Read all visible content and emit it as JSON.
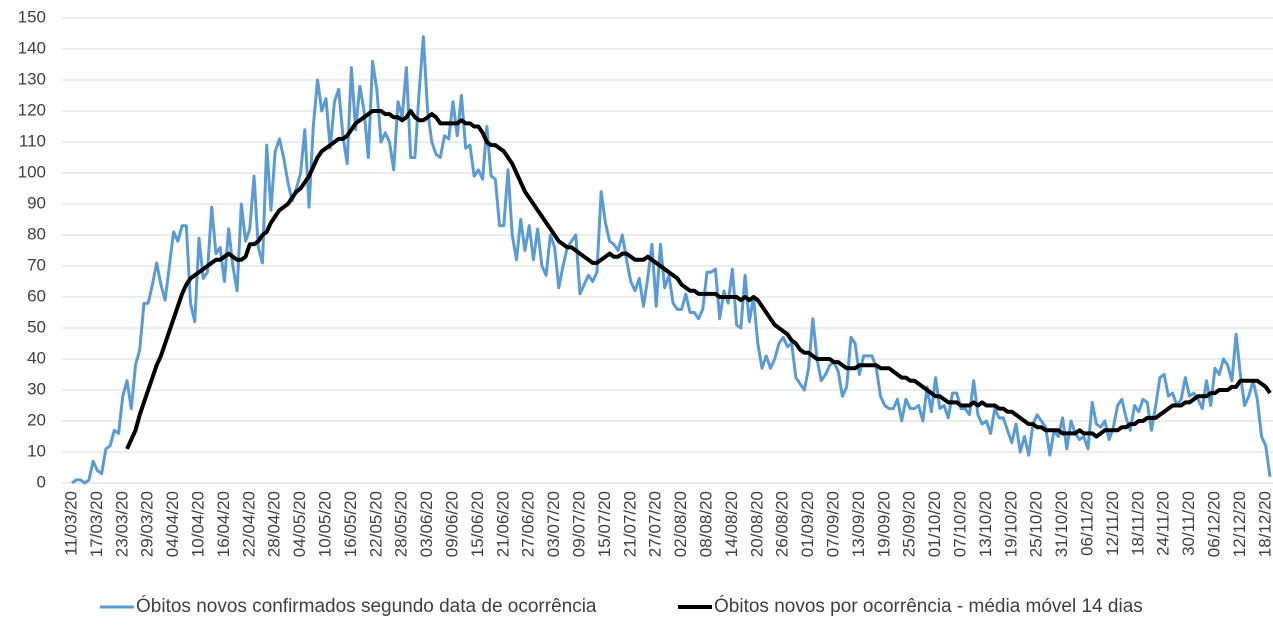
{
  "chart_data": {
    "type": "line",
    "categories": [
      "11/03/20",
      null,
      null,
      null,
      null,
      null,
      "17/03/20",
      null,
      null,
      null,
      null,
      null,
      "23/03/20",
      null,
      null,
      null,
      null,
      null,
      "29/03/20",
      null,
      null,
      null,
      null,
      null,
      "04/04/20",
      null,
      null,
      null,
      null,
      null,
      "10/04/20",
      null,
      null,
      null,
      null,
      null,
      "16/04/20",
      null,
      null,
      null,
      null,
      null,
      "22/04/20",
      null,
      null,
      null,
      null,
      null,
      "28/04/20",
      null,
      null,
      null,
      null,
      null,
      "04/05/20",
      null,
      null,
      null,
      null,
      null,
      "10/05/20",
      null,
      null,
      null,
      null,
      null,
      "16/05/20",
      null,
      null,
      null,
      null,
      null,
      "22/05/20",
      null,
      null,
      null,
      null,
      null,
      "28/05/20",
      null,
      null,
      null,
      null,
      null,
      "03/06/20",
      null,
      null,
      null,
      null,
      null,
      "09/06/20",
      null,
      null,
      null,
      null,
      null,
      "15/06/20",
      null,
      null,
      null,
      null,
      null,
      "21/06/20",
      null,
      null,
      null,
      null,
      null,
      "27/06/20",
      null,
      null,
      null,
      null,
      null,
      "03/07/20",
      null,
      null,
      null,
      null,
      null,
      "09/07/20",
      null,
      null,
      null,
      null,
      null,
      "15/07/20",
      null,
      null,
      null,
      null,
      null,
      "21/07/20",
      null,
      null,
      null,
      null,
      null,
      "27/07/20",
      null,
      null,
      null,
      null,
      null,
      "02/08/20",
      null,
      null,
      null,
      null,
      null,
      "08/08/20",
      null,
      null,
      null,
      null,
      null,
      "14/08/20",
      null,
      null,
      null,
      null,
      null,
      "20/08/20",
      null,
      null,
      null,
      null,
      null,
      "26/08/20",
      null,
      null,
      null,
      null,
      null,
      "01/09/20",
      null,
      null,
      null,
      null,
      null,
      "07/09/20",
      null,
      null,
      null,
      null,
      null,
      "13/09/20",
      null,
      null,
      null,
      null,
      null,
      "19/09/20",
      null,
      null,
      null,
      null,
      null,
      "25/09/20",
      null,
      null,
      null,
      null,
      null,
      "01/10/20",
      null,
      null,
      null,
      null,
      null,
      "07/10/20",
      null,
      null,
      null,
      null,
      null,
      "13/10/20",
      null,
      null,
      null,
      null,
      null,
      "19/10/20",
      null,
      null,
      null,
      null,
      null,
      "25/10/20",
      null,
      null,
      null,
      null,
      null,
      "31/10/20",
      null,
      null,
      null,
      null,
      null,
      "06/11/20",
      null,
      null,
      null,
      null,
      null,
      "12/11/20",
      null,
      null,
      null,
      null,
      null,
      "18/11/20",
      null,
      null,
      null,
      null,
      null,
      "24/11/20",
      null,
      null,
      null,
      null,
      null,
      "30/11/20",
      null,
      null,
      null,
      null,
      null,
      "06/12/20",
      null,
      null,
      null,
      null,
      null,
      "12/12/20",
      null,
      null,
      null,
      null,
      null,
      "18/12/20",
      null
    ],
    "series": [
      {
        "name": "Óbitos novos confirmados segundo data de ocorrência",
        "color": "#5b9bd5",
        "values": [
          0,
          1,
          1,
          0,
          1,
          7,
          4,
          3,
          11,
          12,
          17,
          16,
          28,
          33,
          24,
          38,
          43,
          58,
          58,
          64,
          71,
          64,
          59,
          70,
          81,
          78,
          83,
          83,
          58,
          52,
          79,
          66,
          68,
          89,
          74,
          76,
          65,
          82,
          70,
          62,
          90,
          78,
          82,
          99,
          76,
          71,
          109,
          88,
          107,
          111,
          105,
          97,
          91,
          95,
          100,
          114,
          89,
          115,
          130,
          120,
          124,
          108,
          123,
          127,
          112,
          103,
          134,
          114,
          128,
          120,
          105,
          136,
          127,
          110,
          113,
          110,
          101,
          123,
          118,
          134,
          105,
          105,
          126,
          144,
          120,
          110,
          106,
          105,
          112,
          111,
          123,
          112,
          125,
          108,
          109,
          99,
          101,
          98,
          115,
          99,
          98,
          83,
          83,
          101,
          80,
          72,
          85,
          75,
          83,
          72,
          82,
          70,
          67,
          80,
          76,
          63,
          70,
          76,
          78,
          80,
          61,
          64,
          67,
          65,
          68,
          94,
          84,
          78,
          77,
          75,
          80,
          72,
          65,
          62,
          66,
          57,
          66,
          77,
          57,
          77,
          63,
          67,
          58,
          56,
          56,
          61,
          55,
          55,
          53,
          56,
          68,
          68,
          69,
          53,
          62,
          58,
          69,
          51,
          50,
          67,
          52,
          60,
          45,
          37,
          41,
          37,
          40,
          45,
          47,
          44,
          45,
          34,
          32,
          30,
          37,
          53,
          40,
          33,
          35,
          38,
          39,
          36,
          28,
          31,
          47,
          45,
          35,
          41,
          41,
          41,
          37,
          28,
          25,
          24,
          24,
          27,
          20,
          27,
          24,
          24,
          25,
          20,
          31,
          23,
          34,
          24,
          25,
          21,
          29,
          29,
          24,
          24,
          22,
          33,
          22,
          19,
          20,
          16,
          24,
          21,
          21,
          17,
          13,
          19,
          10,
          15,
          9,
          19,
          22,
          20,
          18,
          9,
          17,
          15,
          21,
          11,
          20,
          16,
          14,
          15,
          11,
          26,
          19,
          18,
          20,
          14,
          18,
          25,
          27,
          21,
          17,
          25,
          23,
          27,
          26,
          17,
          25,
          34,
          35,
          28,
          29,
          25,
          27,
          34,
          28,
          29,
          27,
          24,
          33,
          25,
          37,
          35,
          40,
          38,
          33,
          48,
          35,
          25,
          28,
          33,
          27,
          15,
          12,
          2
        ]
      },
      {
        "name": "Óbitos novos por ocorrência - média móvel 14 dias",
        "color": "#000000",
        "values": [
          null,
          null,
          null,
          null,
          null,
          null,
          null,
          null,
          null,
          null,
          null,
          null,
          null,
          11,
          14,
          17,
          22,
          26,
          30,
          34,
          38,
          41,
          45,
          49,
          53,
          57,
          61,
          64,
          66,
          67,
          68,
          69,
          70,
          71,
          72,
          72,
          73,
          74,
          73,
          72,
          72,
          73,
          77,
          77,
          78,
          80,
          81,
          84,
          86,
          88,
          89,
          90,
          92,
          94,
          95,
          97,
          99,
          102,
          105,
          107,
          108,
          109,
          110,
          111,
          111,
          112,
          114,
          116,
          117,
          118,
          119,
          120,
          120,
          120,
          119,
          119,
          118,
          118,
          117,
          118,
          120,
          118,
          117,
          117,
          118,
          119,
          118,
          116,
          116,
          116,
          116,
          116,
          117,
          116,
          116,
          115,
          115,
          113,
          110,
          109,
          109,
          108,
          107,
          105,
          103,
          100,
          97,
          94,
          92,
          90,
          88,
          86,
          84,
          82,
          80,
          78,
          77,
          76,
          76,
          75,
          74,
          73,
          72,
          71,
          71,
          72,
          73,
          74,
          73,
          73,
          74,
          74,
          73,
          72,
          72,
          72,
          73,
          72,
          71,
          70,
          69,
          68,
          67,
          66,
          64,
          63,
          62,
          62,
          61,
          61,
          61,
          61,
          61,
          60,
          60,
          60,
          60,
          60,
          59,
          60,
          59,
          60,
          59,
          57,
          55,
          53,
          51,
          50,
          49,
          48,
          46,
          45,
          43,
          42,
          42,
          41,
          40,
          40,
          40,
          40,
          39,
          39,
          38,
          37,
          37,
          37,
          38,
          38,
          38,
          38,
          38,
          37,
          37,
          37,
          36,
          35,
          34,
          34,
          33,
          33,
          32,
          31,
          30,
          29,
          28,
          28,
          27,
          26,
          26,
          26,
          25,
          25,
          25,
          26,
          25,
          26,
          25,
          25,
          25,
          24,
          24,
          23,
          23,
          22,
          21,
          20,
          19,
          19,
          18,
          18,
          17,
          17,
          17,
          17,
          16,
          16,
          16,
          16,
          17,
          16,
          16,
          16,
          15,
          16,
          17,
          17,
          17,
          17,
          18,
          18,
          19,
          19,
          20,
          20,
          21,
          21,
          21,
          22,
          23,
          24,
          25,
          25,
          25,
          26,
          26,
          27,
          28,
          28,
          28,
          29,
          29,
          30,
          30,
          30,
          31,
          31,
          33,
          33,
          33,
          33,
          33,
          32,
          31,
          29
        ]
      }
    ],
    "ylim": [
      0,
      150
    ],
    "yticks": [
      0,
      10,
      20,
      30,
      40,
      50,
      60,
      70,
      80,
      90,
      100,
      110,
      120,
      130,
      140,
      150
    ],
    "grid": true,
    "legend": "bottom"
  }
}
